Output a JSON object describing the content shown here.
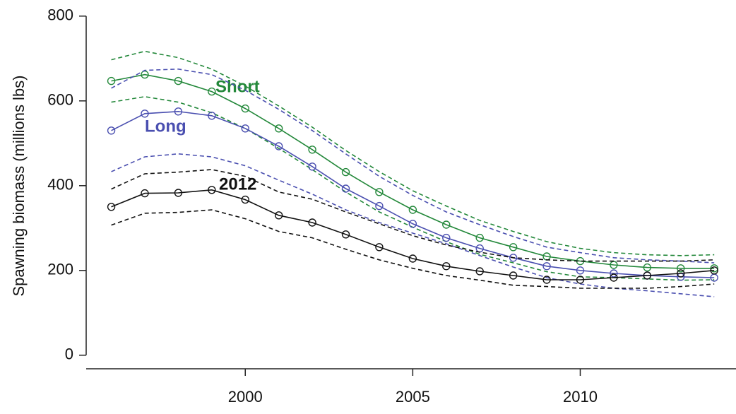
{
  "chart_data": {
    "type": "line",
    "y_label": "Spawning biomass (millions lbs)",
    "x": [
      1996,
      1997,
      1998,
      1999,
      2000,
      2001,
      2002,
      2003,
      2004,
      2005,
      2006,
      2007,
      2008,
      2009,
      2010,
      2011,
      2012,
      2013,
      2014
    ],
    "xlim": [
      1995.25,
      2014.65
    ],
    "xticks": [
      2000,
      2005,
      2010
    ],
    "ylim": [
      -32,
      838
    ],
    "yticks": [
      0,
      200,
      400,
      600,
      800
    ],
    "grid": false,
    "markers": true,
    "series": [
      {
        "name": "Short",
        "color": "#23883a",
        "values": [
          647,
          662,
          647,
          622,
          582,
          535,
          485,
          432,
          385,
          343,
          308,
          277,
          255,
          233,
          222,
          213,
          207,
          205,
          205
        ],
        "upper": [
          697,
          717,
          702,
          675,
          635,
          588,
          538,
          483,
          433,
          388,
          352,
          318,
          292,
          268,
          252,
          242,
          237,
          235,
          237
        ],
        "lower": [
          597,
          610,
          597,
          572,
          535,
          488,
          438,
          385,
          338,
          302,
          268,
          238,
          218,
          197,
          185,
          183,
          180,
          177,
          178
        ]
      },
      {
        "name": "Long",
        "color": "#4a4fb0",
        "values": [
          530,
          570,
          575,
          565,
          535,
          493,
          445,
          393,
          352,
          310,
          277,
          252,
          230,
          210,
          200,
          193,
          188,
          185,
          183
        ],
        "upper": [
          630,
          672,
          675,
          662,
          625,
          580,
          530,
          475,
          422,
          377,
          338,
          308,
          280,
          255,
          242,
          230,
          225,
          222,
          218
        ],
        "lower": [
          433,
          468,
          475,
          468,
          447,
          413,
          380,
          343,
          313,
          288,
          263,
          235,
          208,
          183,
          168,
          158,
          152,
          145,
          138
        ]
      },
      {
        "name": "2012",
        "color": "#111111",
        "values": [
          350,
          382,
          383,
          390,
          367,
          330,
          313,
          285,
          255,
          228,
          210,
          198,
          188,
          178,
          178,
          183,
          188,
          193,
          200
        ],
        "upper": [
          392,
          428,
          432,
          438,
          422,
          385,
          368,
          338,
          310,
          282,
          260,
          243,
          230,
          225,
          222,
          222,
          222,
          222,
          225
        ],
        "lower": [
          307,
          335,
          337,
          343,
          322,
          292,
          277,
          250,
          225,
          205,
          188,
          177,
          165,
          162,
          158,
          158,
          158,
          162,
          168
        ]
      }
    ]
  }
}
